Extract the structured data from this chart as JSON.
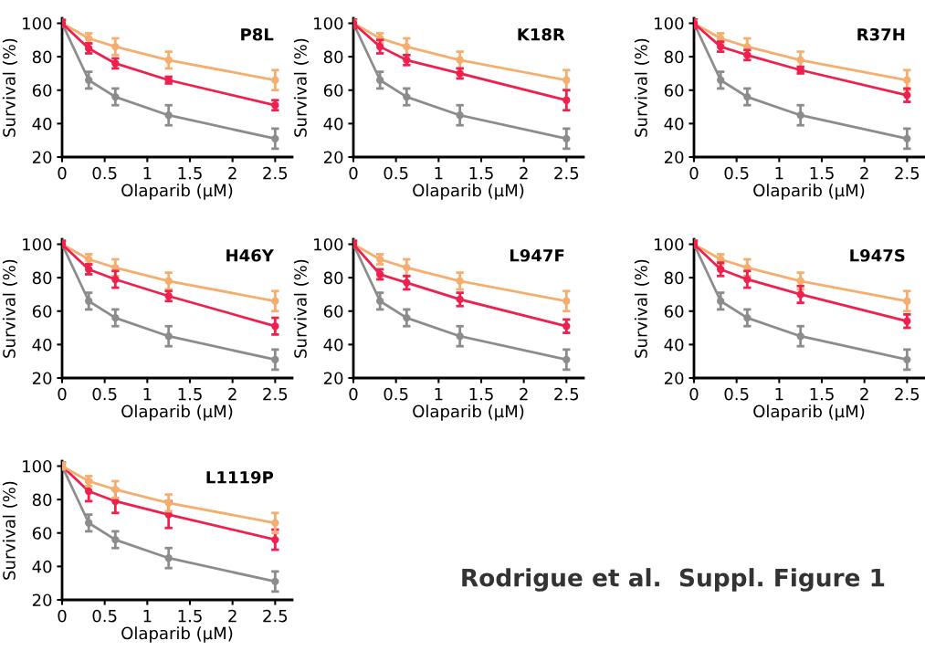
{
  "chart_data": [
    {
      "type": "line",
      "title": "P8L",
      "xlabel": "Olaparib (µM)",
      "ylabel": "Survival (%)",
      "x": [
        0,
        0.3125,
        0.625,
        1.25,
        2.5
      ],
      "xlim": [
        0,
        2.7
      ],
      "ylim": [
        20,
        103
      ],
      "xticks": [
        0,
        0.5,
        1,
        1.5,
        2,
        2.5
      ],
      "yticks": [
        20,
        40,
        60,
        80,
        100
      ],
      "marker": "circle",
      "grid": false,
      "series": [
        {
          "color": "#8c8c8c",
          "values": [
            100,
            66,
            56,
            45,
            31
          ],
          "errors": [
            2,
            5,
            5,
            6,
            6
          ]
        },
        {
          "color": "#f5ae6e",
          "values": [
            100,
            91,
            86,
            78,
            66
          ],
          "errors": [
            2,
            3,
            5,
            5,
            6
          ]
        },
        {
          "color": "#f0204e",
          "values": [
            100,
            85,
            76,
            66,
            51
          ],
          "errors": [
            2,
            3,
            3,
            2,
            3
          ]
        }
      ]
    },
    {
      "type": "line",
      "title": "K18R",
      "xlabel": "Olaparib (µM)",
      "ylabel": "Survival (%)",
      "x": [
        0,
        0.3125,
        0.625,
        1.25,
        2.5
      ],
      "xlim": [
        0,
        2.7
      ],
      "ylim": [
        20,
        103
      ],
      "xticks": [
        0,
        0.5,
        1,
        1.5,
        2,
        2.5
      ],
      "yticks": [
        20,
        40,
        60,
        80,
        100
      ],
      "marker": "circle",
      "grid": false,
      "series": [
        {
          "color": "#8c8c8c",
          "values": [
            100,
            66,
            56,
            45,
            31
          ],
          "errors": [
            2,
            5,
            5,
            6,
            6
          ]
        },
        {
          "color": "#f5ae6e",
          "values": [
            100,
            91,
            86,
            78,
            66
          ],
          "errors": [
            2,
            3,
            5,
            5,
            6
          ]
        },
        {
          "color": "#f0204e",
          "values": [
            100,
            86,
            78,
            70,
            54
          ],
          "errors": [
            3,
            4,
            3,
            3,
            6
          ]
        }
      ]
    },
    {
      "type": "line",
      "title": "R37H",
      "xlabel": "Olaparib (µM)",
      "ylabel": "Survival (%)",
      "x": [
        0,
        0.3125,
        0.625,
        1.25,
        2.5
      ],
      "xlim": [
        0,
        2.7
      ],
      "ylim": [
        20,
        103
      ],
      "xticks": [
        0,
        0.5,
        1,
        1.5,
        2,
        2.5
      ],
      "yticks": [
        20,
        40,
        60,
        80,
        100
      ],
      "marker": "circle",
      "grid": false,
      "series": [
        {
          "color": "#8c8c8c",
          "values": [
            100,
            66,
            56,
            45,
            31
          ],
          "errors": [
            2,
            5,
            5,
            6,
            6
          ]
        },
        {
          "color": "#f5ae6e",
          "values": [
            100,
            91,
            86,
            78,
            66
          ],
          "errors": [
            2,
            3,
            5,
            5,
            6
          ]
        },
        {
          "color": "#f0204e",
          "values": [
            100,
            86,
            81,
            72,
            57
          ],
          "errors": [
            3,
            3,
            3,
            2,
            4
          ]
        }
      ]
    },
    {
      "type": "line",
      "title": "H46Y",
      "xlabel": "Olaparib (µM)",
      "ylabel": "Survival (%)",
      "x": [
        0,
        0.3125,
        0.625,
        1.25,
        2.5
      ],
      "xlim": [
        0,
        2.7
      ],
      "ylim": [
        20,
        103
      ],
      "xticks": [
        0,
        0.5,
        1,
        1.5,
        2,
        2.5
      ],
      "yticks": [
        20,
        40,
        60,
        80,
        100
      ],
      "marker": "circle",
      "grid": false,
      "series": [
        {
          "color": "#8c8c8c",
          "values": [
            100,
            66,
            56,
            45,
            31
          ],
          "errors": [
            2,
            5,
            5,
            6,
            6
          ]
        },
        {
          "color": "#f5ae6e",
          "values": [
            100,
            91,
            86,
            78,
            66
          ],
          "errors": [
            2,
            3,
            5,
            5,
            6
          ]
        },
        {
          "color": "#f0204e",
          "values": [
            100,
            85,
            79,
            69,
            51
          ],
          "errors": [
            2,
            3,
            5,
            3,
            5
          ]
        }
      ]
    },
    {
      "type": "line",
      "title": "L947F",
      "xlabel": "Olaparib (µM)",
      "ylabel": "Survival (%)",
      "x": [
        0,
        0.3125,
        0.625,
        1.25,
        2.5
      ],
      "xlim": [
        0,
        2.7
      ],
      "ylim": [
        20,
        103
      ],
      "xticks": [
        0,
        0.5,
        1,
        1.5,
        2,
        2.5
      ],
      "yticks": [
        20,
        40,
        60,
        80,
        100
      ],
      "marker": "circle",
      "grid": false,
      "series": [
        {
          "color": "#8c8c8c",
          "values": [
            100,
            66,
            56,
            45,
            31
          ],
          "errors": [
            2,
            5,
            5,
            6,
            6
          ]
        },
        {
          "color": "#f5ae6e",
          "values": [
            100,
            91,
            86,
            78,
            66
          ],
          "errors": [
            2,
            3,
            5,
            5,
            6
          ]
        },
        {
          "color": "#f0204e",
          "values": [
            100,
            82,
            77,
            67,
            51
          ],
          "errors": [
            2,
            3,
            4,
            4,
            4
          ]
        }
      ]
    },
    {
      "type": "line",
      "title": "L947S",
      "xlabel": "Olaparib (µM)",
      "ylabel": "Survival (%)",
      "x": [
        0,
        0.3125,
        0.625,
        1.25,
        2.5
      ],
      "xlim": [
        0,
        2.7
      ],
      "ylim": [
        20,
        103
      ],
      "xticks": [
        0,
        0.5,
        1,
        1.5,
        2,
        2.5
      ],
      "yticks": [
        20,
        40,
        60,
        80,
        100
      ],
      "marker": "circle",
      "grid": false,
      "series": [
        {
          "color": "#8c8c8c",
          "values": [
            100,
            66,
            56,
            45,
            31
          ],
          "errors": [
            2,
            5,
            5,
            6,
            6
          ]
        },
        {
          "color": "#f5ae6e",
          "values": [
            100,
            91,
            86,
            78,
            66
          ],
          "errors": [
            2,
            3,
            5,
            5,
            6
          ]
        },
        {
          "color": "#f0204e",
          "values": [
            100,
            85,
            79,
            70,
            54
          ],
          "errors": [
            2,
            4,
            5,
            5,
            4
          ]
        }
      ]
    },
    {
      "type": "line",
      "title": "L1119P",
      "xlabel": "Olaparib (µM)",
      "ylabel": "Survival (%)",
      "x": [
        0,
        0.3125,
        0.625,
        1.25,
        2.5
      ],
      "xlim": [
        0,
        2.7
      ],
      "ylim": [
        20,
        103
      ],
      "xticks": [
        0,
        0.5,
        1,
        1.5,
        2,
        2.5
      ],
      "yticks": [
        20,
        40,
        60,
        80,
        100
      ],
      "marker": "circle",
      "grid": false,
      "annotations": [
        "Rodrigue et al.  Suppl. Figure 1"
      ],
      "series": [
        {
          "color": "#8c8c8c",
          "values": [
            100,
            66,
            56,
            45,
            31
          ],
          "errors": [
            2,
            5,
            5,
            6,
            6
          ]
        },
        {
          "color": "#f0204e",
          "values": [
            100,
            85,
            79,
            71,
            56
          ],
          "errors": [
            2,
            6,
            7,
            8,
            6
          ]
        },
        {
          "color": "#f5ae6e",
          "values": [
            100,
            91,
            86,
            78,
            66
          ],
          "errors": [
            2,
            3,
            5,
            5,
            6
          ]
        }
      ]
    }
  ]
}
